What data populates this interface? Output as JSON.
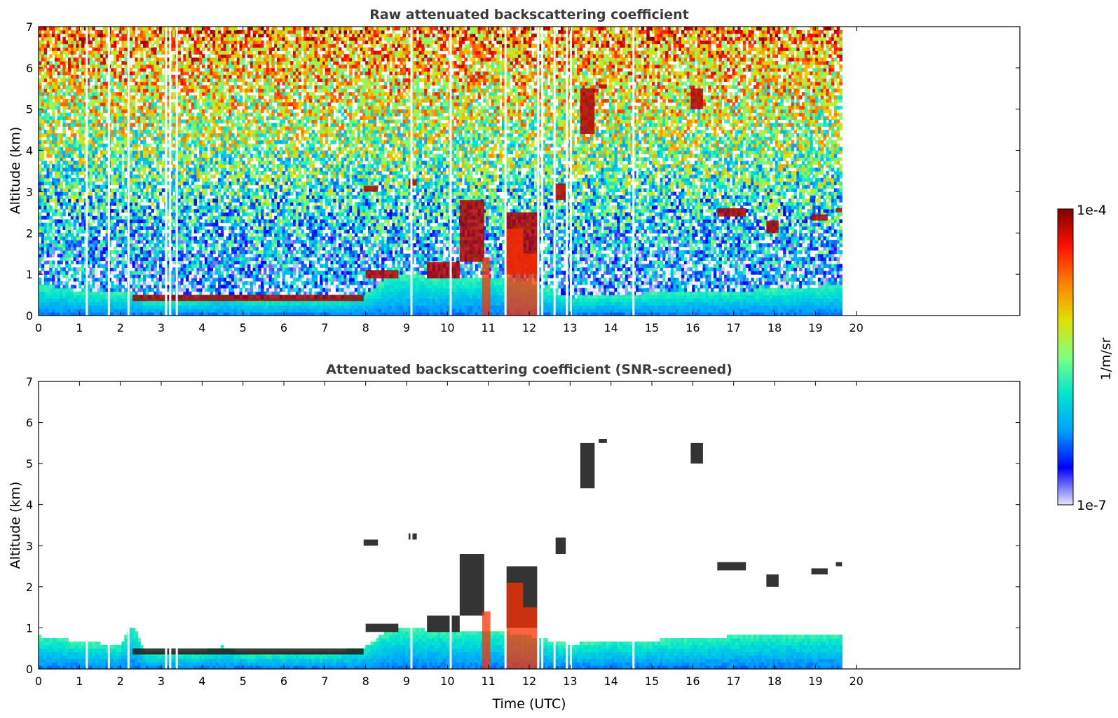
{
  "chart_data": [
    {
      "type": "heatmap",
      "title": "Raw attenuated backscattering coefficient",
      "xlabel": "",
      "ylabel": "Altitude (km)",
      "xlim": [
        0,
        24
      ],
      "ylim": [
        0,
        7
      ],
      "x_ticks": [
        "0",
        "1",
        "2",
        "3",
        "4",
        "5",
        "6",
        "7",
        "8",
        "9",
        "10",
        "11",
        "12",
        "13",
        "14",
        "15",
        "16",
        "17",
        "18",
        "19",
        "20"
      ],
      "y_ticks": [
        "0",
        "1",
        "2",
        "3",
        "4",
        "5",
        "6",
        "7"
      ],
      "data_extent_x": [
        0,
        19.65
      ],
      "noise": "high",
      "gaps_utc": [
        1.18,
        1.72,
        2.2,
        3.12,
        3.22,
        3.38,
        9.12,
        10.08,
        11.42,
        12.22,
        12.32,
        12.62,
        12.92,
        13.02,
        14.55
      ],
      "boundary_layer": {
        "x": [
          0.0,
          0.5,
          1.0,
          2.0,
          2.3,
          2.6,
          3.0,
          4.0,
          4.5,
          5.0,
          5.5,
          6.0,
          6.5,
          7.0,
          7.5,
          8.0,
          8.5,
          9.0,
          10.0,
          11.0,
          12.0,
          13.0,
          14.0,
          15.0,
          16.0,
          17.0,
          18.0,
          19.0,
          19.65
        ],
        "top_km": [
          0.75,
          0.7,
          0.6,
          0.55,
          0.6,
          0.4,
          0.38,
          0.42,
          0.55,
          0.4,
          0.38,
          0.4,
          0.45,
          0.38,
          0.45,
          0.55,
          0.9,
          1.0,
          0.9,
          0.95,
          0.8,
          0.45,
          0.5,
          0.55,
          0.6,
          0.6,
          0.65,
          0.7,
          0.75
        ]
      },
      "aerosol_layer": {
        "x_range": [
          2.3,
          7.95
        ],
        "altitude_km": [
          0.35,
          0.5
        ]
      },
      "cloud_features": [
        {
          "x_range": [
            7.95,
            8.3
          ],
          "alt_km": [
            3.0,
            3.15
          ]
        },
        {
          "x_range": [
            9.05,
            9.25
          ],
          "alt_km": [
            3.15,
            3.3
          ]
        },
        {
          "x_range": [
            8.0,
            8.8
          ],
          "alt_km": [
            0.9,
            1.1
          ]
        },
        {
          "x_range": [
            9.5,
            10.3
          ],
          "alt_km": [
            0.9,
            1.3
          ]
        },
        {
          "x_range": [
            10.3,
            10.9
          ],
          "alt_km": [
            1.3,
            2.8
          ]
        },
        {
          "x_range": [
            11.4,
            12.2
          ],
          "alt_km": [
            1.0,
            2.5
          ]
        },
        {
          "x_range": [
            12.6,
            12.9
          ],
          "alt_km": [
            2.8,
            3.2
          ]
        },
        {
          "x_range": [
            13.25,
            13.6
          ],
          "alt_km": [
            4.4,
            5.5
          ]
        },
        {
          "x_range": [
            13.7,
            13.9
          ],
          "alt_km": [
            5.5,
            5.6
          ]
        },
        {
          "x_range": [
            15.95,
            16.25
          ],
          "alt_km": [
            5.0,
            5.5
          ]
        },
        {
          "x_range": [
            16.6,
            17.3
          ],
          "alt_km": [
            2.4,
            2.6
          ]
        },
        {
          "x_range": [
            17.8,
            18.1
          ],
          "alt_km": [
            2.0,
            2.3
          ]
        },
        {
          "x_range": [
            18.9,
            19.3
          ],
          "alt_km": [
            2.3,
            2.45
          ]
        },
        {
          "x_range": [
            19.5,
            19.65
          ],
          "alt_km": [
            2.5,
            2.6
          ]
        }
      ],
      "intense_columns": [
        {
          "x_range": [
            10.85,
            11.05
          ],
          "alt_km": [
            0,
            1.4
          ]
        },
        {
          "x_range": [
            11.45,
            11.85
          ],
          "alt_km": [
            0,
            2.1
          ]
        },
        {
          "x_range": [
            11.85,
            12.2
          ],
          "alt_km": [
            0,
            1.5
          ]
        }
      ]
    },
    {
      "type": "heatmap",
      "title": "Attenuated backscattering coefficient (SNR-screened)",
      "xlabel": "Time (UTC)",
      "ylabel": "Altitude (km)",
      "xlim": [
        0,
        24
      ],
      "ylim": [
        0,
        7
      ],
      "x_ticks": [
        "0",
        "1",
        "2",
        "3",
        "4",
        "5",
        "6",
        "7",
        "8",
        "9",
        "10",
        "11",
        "12",
        "13",
        "14",
        "15",
        "16",
        "17",
        "18",
        "19",
        "20"
      ],
      "y_ticks": [
        "0",
        "1",
        "2",
        "3",
        "4",
        "5",
        "6",
        "7"
      ],
      "data_extent_x": [
        0,
        19.65
      ],
      "noise": "screened",
      "gaps_utc": [
        1.18,
        1.72,
        2.2,
        3.12,
        3.22,
        3.38,
        9.12,
        10.08,
        11.42,
        12.22,
        12.32,
        12.62,
        12.92,
        13.02,
        14.55
      ],
      "boundary_layer": {
        "x": [
          0.0,
          0.5,
          1.0,
          2.0,
          2.3,
          2.6,
          3.0,
          4.0,
          4.5,
          5.0,
          5.5,
          6.0,
          6.5,
          7.0,
          7.5,
          8.0,
          8.5,
          9.0,
          10.0,
          11.0,
          12.0,
          13.0,
          14.0,
          15.0,
          16.0,
          17.0,
          18.0,
          19.0,
          19.65
        ],
        "top_km": [
          0.8,
          0.75,
          0.65,
          0.6,
          1.1,
          0.4,
          0.38,
          0.42,
          0.55,
          0.4,
          0.38,
          0.4,
          0.45,
          0.38,
          0.45,
          0.55,
          0.9,
          1.0,
          0.9,
          0.95,
          0.8,
          0.6,
          0.7,
          0.7,
          0.75,
          0.8,
          0.85,
          0.85,
          0.85
        ]
      },
      "aerosol_layer": {
        "x_range": [
          2.3,
          7.95
        ],
        "altitude_km": [
          0.35,
          0.5
        ]
      },
      "cloud_features": [
        {
          "x_range": [
            7.95,
            8.3
          ],
          "alt_km": [
            3.0,
            3.15
          ]
        },
        {
          "x_range": [
            9.05,
            9.25
          ],
          "alt_km": [
            3.15,
            3.3
          ]
        },
        {
          "x_range": [
            8.0,
            8.8
          ],
          "alt_km": [
            0.9,
            1.1
          ]
        },
        {
          "x_range": [
            9.5,
            10.3
          ],
          "alt_km": [
            0.9,
            1.3
          ]
        },
        {
          "x_range": [
            10.3,
            10.9
          ],
          "alt_km": [
            1.3,
            2.8
          ]
        },
        {
          "x_range": [
            11.4,
            12.2
          ],
          "alt_km": [
            1.0,
            2.5
          ]
        },
        {
          "x_range": [
            12.6,
            12.9
          ],
          "alt_km": [
            2.8,
            3.2
          ]
        },
        {
          "x_range": [
            13.25,
            13.6
          ],
          "alt_km": [
            4.4,
            5.5
          ]
        },
        {
          "x_range": [
            13.7,
            13.9
          ],
          "alt_km": [
            5.5,
            5.6
          ]
        },
        {
          "x_range": [
            15.95,
            16.25
          ],
          "alt_km": [
            5.0,
            5.5
          ]
        },
        {
          "x_range": [
            16.6,
            17.3
          ],
          "alt_km": [
            2.4,
            2.6
          ]
        },
        {
          "x_range": [
            17.8,
            18.1
          ],
          "alt_km": [
            2.0,
            2.3
          ]
        },
        {
          "x_range": [
            18.9,
            19.3
          ],
          "alt_km": [
            2.3,
            2.45
          ]
        },
        {
          "x_range": [
            19.5,
            19.65
          ],
          "alt_km": [
            2.5,
            2.6
          ]
        }
      ],
      "intense_columns": [
        {
          "x_range": [
            10.85,
            11.05
          ],
          "alt_km": [
            0,
            1.4
          ]
        },
        {
          "x_range": [
            11.45,
            11.85
          ],
          "alt_km": [
            0,
            2.1
          ]
        },
        {
          "x_range": [
            11.85,
            12.2
          ],
          "alt_km": [
            0,
            1.5
          ]
        }
      ]
    }
  ],
  "colorbar": {
    "label": "1/m/sr",
    "min_label": "1e-7",
    "max_label": "1e-4",
    "scale": "log",
    "range": [
      1e-07,
      0.0001
    ],
    "colors": [
      "#e6e6fa",
      "#0000ff",
      "#00a0ff",
      "#00e5d0",
      "#80ff80",
      "#e0e000",
      "#ff8000",
      "#ff1000",
      "#800000"
    ]
  },
  "colors": {
    "title_text": "#3c3c3c",
    "axis": "#000000"
  }
}
